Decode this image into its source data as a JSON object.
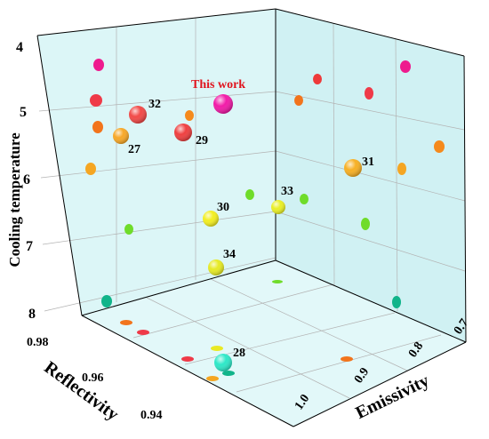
{
  "chart_data": {
    "type": "scatter",
    "subtype": "3d-bubble",
    "title": "",
    "axes": {
      "z": {
        "label": "Cooling temperature",
        "ticks": [
          "4",
          "5",
          "6",
          "7",
          "8"
        ],
        "range": [
          4,
          8.4
        ],
        "inverted": true
      },
      "reflectivity": {
        "label": "Reflectivity",
        "ticks": [
          "0.98",
          "0.96",
          "0.94"
        ],
        "range": [
          0.93,
          0.99
        ]
      },
      "emissivity": {
        "label": "Emissivity",
        "ticks": [
          "1.0",
          "0.9",
          "0.8",
          "0.7"
        ],
        "range": [
          0.67,
          1.03
        ]
      }
    },
    "grid": true,
    "colors": {
      "pane": "#dff7f8",
      "wall": "#d4f3f5",
      "highlight_label": "#e0141e"
    },
    "labeled_points": [
      {
        "label": "This work",
        "reflectivity": 0.97,
        "emissivity": 0.92,
        "cooling_temperature": 5.0,
        "color": "#f21ca8",
        "highlight": true
      },
      {
        "label": "32",
        "reflectivity": 0.976,
        "emissivity": 0.97,
        "cooling_temperature": 5.1,
        "color": "#f24a48"
      },
      {
        "label": "27",
        "reflectivity": 0.978,
        "emissivity": 0.985,
        "cooling_temperature": 5.4,
        "color": "#f7a828"
      },
      {
        "label": "29",
        "reflectivity": 0.972,
        "emissivity": 0.95,
        "cooling_temperature": 5.3,
        "color": "#ef4040"
      },
      {
        "label": "31",
        "reflectivity": 0.94,
        "emissivity": 0.85,
        "cooling_temperature": 5.85,
        "color": "#f7b025"
      },
      {
        "label": "33",
        "reflectivity": 0.96,
        "emissivity": 0.88,
        "cooling_temperature": 6.4,
        "color": "#e9ef27"
      },
      {
        "label": "30",
        "reflectivity": 0.97,
        "emissivity": 0.93,
        "cooling_temperature": 6.6,
        "color": "#f2ee22"
      },
      {
        "label": "34",
        "reflectivity": 0.965,
        "emissivity": 0.92,
        "cooling_temperature": 7.3,
        "color": "#e6ea25"
      },
      {
        "label": "28",
        "reflectivity": 0.955,
        "emissivity": 0.965,
        "cooling_temperature": 8.4,
        "color": "#2ee8c8"
      }
    ]
  }
}
